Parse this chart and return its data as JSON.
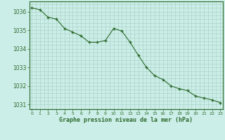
{
  "x": [
    0,
    1,
    2,
    3,
    4,
    5,
    6,
    7,
    8,
    9,
    10,
    11,
    12,
    13,
    14,
    15,
    16,
    17,
    18,
    19,
    20,
    21,
    22,
    23
  ],
  "y": [
    1036.2,
    1036.1,
    1035.7,
    1035.6,
    1035.1,
    1034.9,
    1034.7,
    1034.35,
    1034.35,
    1034.45,
    1035.1,
    1034.95,
    1034.35,
    1033.65,
    1033.0,
    1032.55,
    1032.35,
    1032.0,
    1031.85,
    1031.75,
    1031.45,
    1031.35,
    1031.25,
    1031.1
  ],
  "ylim": [
    1030.75,
    1036.55
  ],
  "yticks": [
    1031,
    1032,
    1033,
    1034,
    1035,
    1036
  ],
  "xlabel": "Graphe pression niveau de la mer (hPa)",
  "line_color": "#2d6a2d",
  "marker_color": "#2d6a2d",
  "bg_color": "#cceee8",
  "grid_color": "#aad4c8",
  "axis_color": "#2d6a2d",
  "label_color": "#2d6a2d",
  "border_color": "#2d6a2d",
  "xlim_left": -0.3,
  "xlim_right": 23.3
}
